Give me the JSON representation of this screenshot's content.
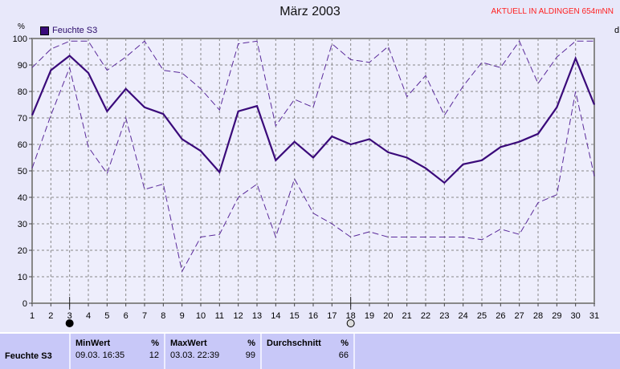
{
  "header": {
    "title": "März 2003",
    "status": "AKTUELL IN ALDINGEN 654mNN",
    "right_cut": "d"
  },
  "chart_data": {
    "type": "line",
    "title": "März 2003",
    "ylabel": "%",
    "ylim": [
      0,
      100
    ],
    "xlim": [
      1,
      31
    ],
    "grid": true,
    "legend": {
      "label": "Feuchte S3",
      "placement": "top-left"
    },
    "x": [
      1,
      2,
      3,
      4,
      5,
      6,
      7,
      8,
      9,
      10,
      11,
      12,
      13,
      14,
      15,
      16,
      17,
      18,
      19,
      20,
      21,
      22,
      23,
      24,
      25,
      26,
      27,
      28,
      29,
      30,
      31
    ],
    "yticks": [
      0,
      10,
      20,
      30,
      40,
      50,
      60,
      70,
      80,
      90,
      100
    ],
    "series": [
      {
        "name": "Feuchte S3",
        "style": "solid",
        "color": "#3a0a7a",
        "values": [
          71,
          88,
          93.5,
          87,
          72.5,
          81,
          74,
          71.5,
          62,
          57.5,
          49.5,
          72.5,
          74.5,
          54,
          61,
          55,
          63,
          60,
          62,
          57,
          55,
          51,
          45.5,
          52.5,
          54,
          59,
          61,
          64,
          74,
          92.5,
          75
        ]
      },
      {
        "style": "dashed-max",
        "color": "#5a2a9a",
        "values": [
          89,
          96,
          99,
          99,
          88,
          93,
          99,
          88,
          87,
          81,
          73,
          98,
          99,
          67,
          77,
          74,
          98,
          92,
          91,
          97,
          78,
          86,
          71,
          82,
          91,
          89,
          99,
          83,
          93,
          99,
          99
        ]
      },
      {
        "style": "dashed-min",
        "color": "#5a2a9a",
        "values": [
          51,
          71,
          89,
          59,
          49,
          70,
          43,
          45,
          12,
          25,
          26,
          40,
          45,
          25,
          47,
          34,
          30,
          25,
          27,
          25,
          25,
          25,
          25,
          25,
          24,
          28,
          26,
          38,
          41,
          80,
          48
        ]
      }
    ],
    "moon_markers": [
      {
        "day": 3,
        "phase": "new-moon"
      },
      {
        "day": 18,
        "phase": "full-moon"
      }
    ]
  },
  "stats": {
    "sensor": "Feuchte S3",
    "min": {
      "label": "MinWert",
      "unit": "%",
      "time": "09.03.  16:35",
      "value": "12"
    },
    "max": {
      "label": "MaxWert",
      "unit": "%",
      "time": "03.03.  22:39",
      "value": "99"
    },
    "avg": {
      "label": "Durchschnitt",
      "unit": "%",
      "value": "66"
    }
  }
}
